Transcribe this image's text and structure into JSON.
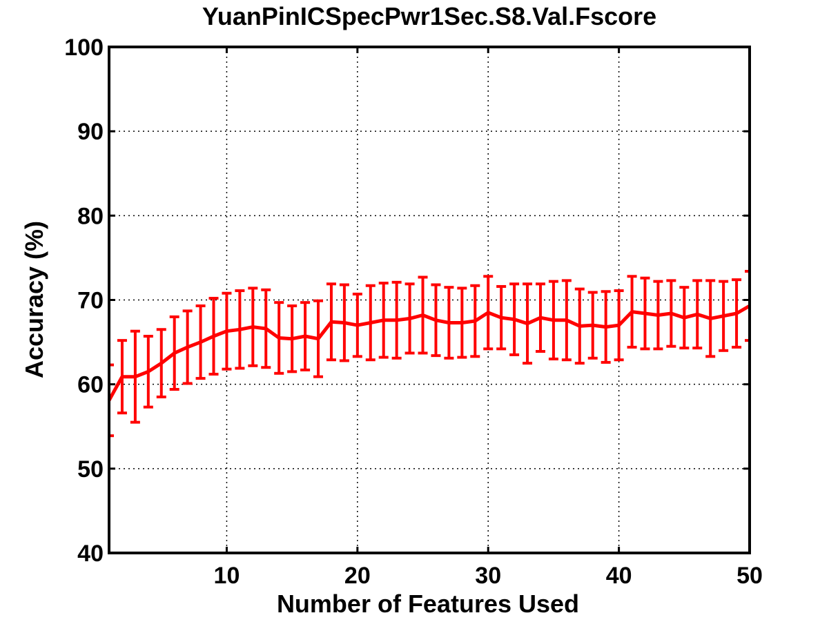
{
  "chart_data": {
    "type": "line",
    "title": "YuanPinICSpecPwr1Sec.S8.Val.Fscore",
    "xlabel": "Number of Features Used",
    "ylabel": "Accuracy (%)",
    "xlim": [
      1,
      50
    ],
    "ylim": [
      40,
      100
    ],
    "xticks": [
      10,
      20,
      30,
      40,
      50
    ],
    "yticks": [
      40,
      50,
      60,
      70,
      80,
      90,
      100
    ],
    "grid": true,
    "legend": "none",
    "series": [
      {
        "color": "#ff0000",
        "x": [
          1,
          2,
          3,
          4,
          5,
          6,
          7,
          8,
          9,
          10,
          11,
          12,
          13,
          14,
          15,
          16,
          17,
          18,
          19,
          20,
          21,
          22,
          23,
          24,
          25,
          26,
          27,
          28,
          29,
          30,
          31,
          32,
          33,
          34,
          35,
          36,
          37,
          38,
          39,
          40,
          41,
          42,
          43,
          44,
          45,
          46,
          47,
          48,
          49,
          50
        ],
        "y": [
          58.1,
          60.9,
          60.9,
          61.5,
          62.5,
          63.7,
          64.4,
          65.0,
          65.7,
          66.3,
          66.5,
          66.8,
          66.6,
          65.5,
          65.4,
          65.7,
          65.4,
          67.4,
          67.3,
          67.0,
          67.3,
          67.6,
          67.6,
          67.8,
          68.2,
          67.6,
          67.3,
          67.3,
          67.5,
          68.5,
          67.9,
          67.7,
          67.2,
          67.9,
          67.6,
          67.6,
          66.9,
          67.0,
          66.8,
          67.0,
          68.6,
          68.4,
          68.2,
          68.4,
          67.9,
          68.3,
          67.8,
          68.1,
          68.4,
          69.3
        ],
        "err": [
          4.2,
          4.3,
          5.4,
          4.2,
          4.0,
          4.3,
          4.3,
          4.3,
          4.5,
          4.5,
          4.6,
          4.6,
          4.6,
          4.2,
          3.9,
          4.0,
          4.5,
          4.5,
          4.5,
          3.7,
          4.4,
          4.4,
          4.5,
          4.1,
          4.5,
          4.2,
          4.2,
          4.1,
          4.2,
          4.3,
          3.7,
          4.2,
          4.7,
          4.0,
          4.6,
          4.7,
          4.4,
          3.9,
          4.2,
          4.1,
          4.2,
          4.2,
          4.0,
          3.9,
          3.6,
          4.0,
          4.5,
          4.1,
          4.0,
          4.1
        ]
      }
    ]
  }
}
